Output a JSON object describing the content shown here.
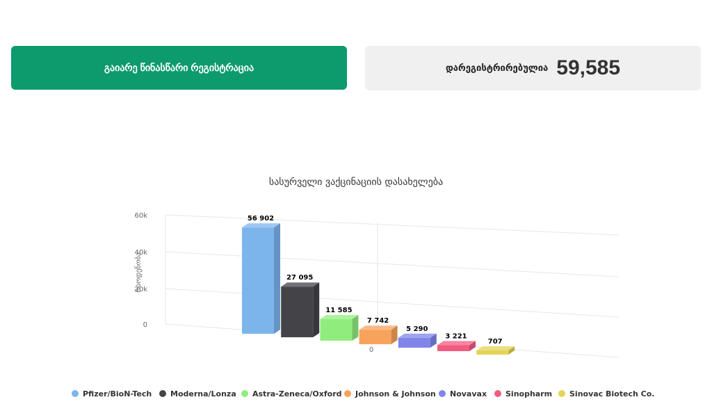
{
  "register_button": {
    "label": "გაიარე წინასწარი რეგისტრაცია"
  },
  "registered": {
    "label": "დარეგისტრირებულია",
    "count": "59,585"
  },
  "chart_data": {
    "type": "bar",
    "title": "სასურველი ვაქცინაციის დასახელება",
    "ylabel": "რაოდენობა",
    "ylim": [
      0,
      60000
    ],
    "yticks": [
      "0",
      "20k",
      "40k",
      "60k"
    ],
    "xtick": "0",
    "grid": true,
    "legend_position": "bottom",
    "categories": [
      "Pfizer/BioN-Tech",
      "Moderna/Lonza",
      "Astra-Zeneca/Oxford",
      "Johnson & Johnson",
      "Novavax",
      "Sinopharm",
      "Sinovac Biotech Co."
    ],
    "values": [
      56902,
      27095,
      11585,
      7742,
      5290,
      3221,
      707
    ],
    "value_labels": [
      "56 902",
      "27 095",
      "11 585",
      "7 742",
      "5 290",
      "3 221",
      "707"
    ],
    "colors": [
      "#7cb5ec",
      "#434348",
      "#90ed7d",
      "#f7a35c",
      "#8085e9",
      "#f15c80",
      "#e4d354"
    ]
  }
}
